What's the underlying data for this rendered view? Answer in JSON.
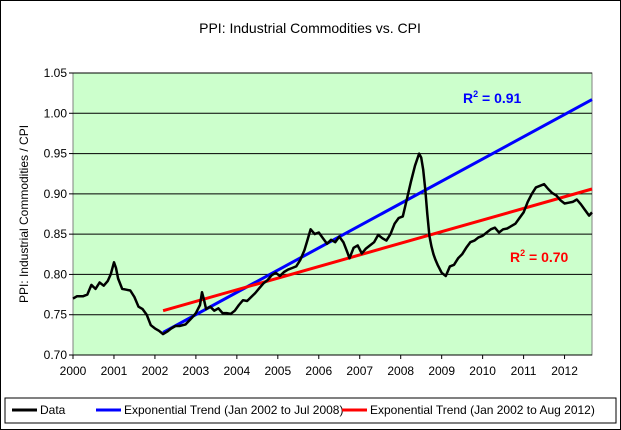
{
  "chart_data": {
    "type": "line",
    "title": "PPI: Industrial Commodities vs. CPI",
    "xlabel": "",
    "ylabel": "PPI: Industrial Commodities / CPI",
    "xlim": [
      2000.0,
      2012.67
    ],
    "ylim": [
      0.7,
      1.05
    ],
    "x_ticks": [
      "2000",
      "2001",
      "2002",
      "2003",
      "2004",
      "2005",
      "2006",
      "2007",
      "2008",
      "2009",
      "2010",
      "2011",
      "2012"
    ],
    "y_ticks": [
      "0.70",
      "0.75",
      "0.80",
      "0.85",
      "0.90",
      "0.95",
      "1.00",
      "1.05"
    ],
    "plot_background": "#CCFFCC",
    "grid": "horizontal",
    "legend_position": "bottom",
    "series": [
      {
        "name": "Data",
        "color": "#000000",
        "x": [
          2000.0,
          2000.1,
          2000.25,
          2000.35,
          2000.45,
          2000.55,
          2000.65,
          2000.75,
          2000.85,
          2000.92,
          2001.0,
          2001.05,
          2001.1,
          2001.2,
          2001.3,
          2001.4,
          2001.5,
          2001.6,
          2001.7,
          2001.8,
          2001.9,
          2002.0,
          2002.1,
          2002.2,
          2002.3,
          2002.4,
          2002.5,
          2002.6,
          2002.75,
          2002.9,
          2003.0,
          2003.1,
          2003.15,
          2003.2,
          2003.25,
          2003.35,
          2003.45,
          2003.55,
          2003.65,
          2003.75,
          2003.85,
          2003.95,
          2004.05,
          2004.15,
          2004.25,
          2004.35,
          2004.45,
          2004.55,
          2004.65,
          2004.75,
          2004.85,
          2004.95,
          2005.05,
          2005.15,
          2005.25,
          2005.35,
          2005.45,
          2005.55,
          2005.65,
          2005.72,
          2005.8,
          2005.9,
          2006.0,
          2006.1,
          2006.2,
          2006.3,
          2006.4,
          2006.5,
          2006.6,
          2006.7,
          2006.75,
          2006.85,
          2006.95,
          2007.05,
          2007.15,
          2007.25,
          2007.35,
          2007.45,
          2007.55,
          2007.65,
          2007.75,
          2007.85,
          2007.95,
          2008.05,
          2008.15,
          2008.25,
          2008.35,
          2008.45,
          2008.5,
          2008.55,
          2008.6,
          2008.65,
          2008.7,
          2008.75,
          2008.8,
          2008.85,
          2008.9,
          2009.0,
          2009.1,
          2009.2,
          2009.3,
          2009.4,
          2009.5,
          2009.6,
          2009.7,
          2009.8,
          2009.9,
          2010.0,
          2010.1,
          2010.2,
          2010.3,
          2010.4,
          2010.5,
          2010.6,
          2010.7,
          2010.8,
          2010.9,
          2011.0,
          2011.1,
          2011.2,
          2011.3,
          2011.4,
          2011.5,
          2011.6,
          2011.7,
          2011.8,
          2011.9,
          2012.0,
          2012.1,
          2012.2,
          2012.3,
          2012.4,
          2012.5,
          2012.6,
          2012.67
        ],
        "y": [
          0.77,
          0.773,
          0.773,
          0.775,
          0.787,
          0.782,
          0.79,
          0.786,
          0.792,
          0.8,
          0.815,
          0.808,
          0.795,
          0.782,
          0.781,
          0.78,
          0.772,
          0.76,
          0.757,
          0.75,
          0.737,
          0.733,
          0.73,
          0.726,
          0.729,
          0.733,
          0.736,
          0.736,
          0.738,
          0.746,
          0.752,
          0.762,
          0.778,
          0.768,
          0.757,
          0.76,
          0.755,
          0.758,
          0.752,
          0.752,
          0.751,
          0.755,
          0.762,
          0.768,
          0.767,
          0.772,
          0.777,
          0.783,
          0.789,
          0.793,
          0.799,
          0.802,
          0.798,
          0.803,
          0.806,
          0.808,
          0.81,
          0.818,
          0.83,
          0.842,
          0.856,
          0.85,
          0.852,
          0.845,
          0.838,
          0.843,
          0.84,
          0.847,
          0.84,
          0.827,
          0.82,
          0.833,
          0.836,
          0.826,
          0.832,
          0.836,
          0.84,
          0.849,
          0.845,
          0.842,
          0.85,
          0.863,
          0.87,
          0.872,
          0.893,
          0.915,
          0.935,
          0.95,
          0.945,
          0.93,
          0.905,
          0.875,
          0.848,
          0.835,
          0.825,
          0.818,
          0.812,
          0.802,
          0.798,
          0.81,
          0.812,
          0.82,
          0.825,
          0.833,
          0.84,
          0.842,
          0.846,
          0.848,
          0.852,
          0.856,
          0.858,
          0.852,
          0.856,
          0.857,
          0.86,
          0.863,
          0.87,
          0.877,
          0.89,
          0.9,
          0.908,
          0.91,
          0.912,
          0.906,
          0.901,
          0.898,
          0.892,
          0.888,
          0.889,
          0.89,
          0.893,
          0.887,
          0.88,
          0.873,
          0.877
        ]
      },
      {
        "name": "Exponential Trend (Jan 2002 to Jul 2008)",
        "color": "#0000FF",
        "r2_label": "R",
        "r2_sup": "2",
        "r2_value": " = 0.91",
        "x": [
          2002.2,
          2012.67
        ],
        "y": [
          0.728,
          1.017
        ]
      },
      {
        "name": "Exponential Trend (Jan 2002 to Aug 2012)",
        "color": "#FF0000",
        "r2_label": "R",
        "r2_sup": "2",
        "r2_value": " = 0.70",
        "x": [
          2002.2,
          2012.67
        ],
        "y": [
          0.755,
          0.906
        ]
      }
    ]
  }
}
